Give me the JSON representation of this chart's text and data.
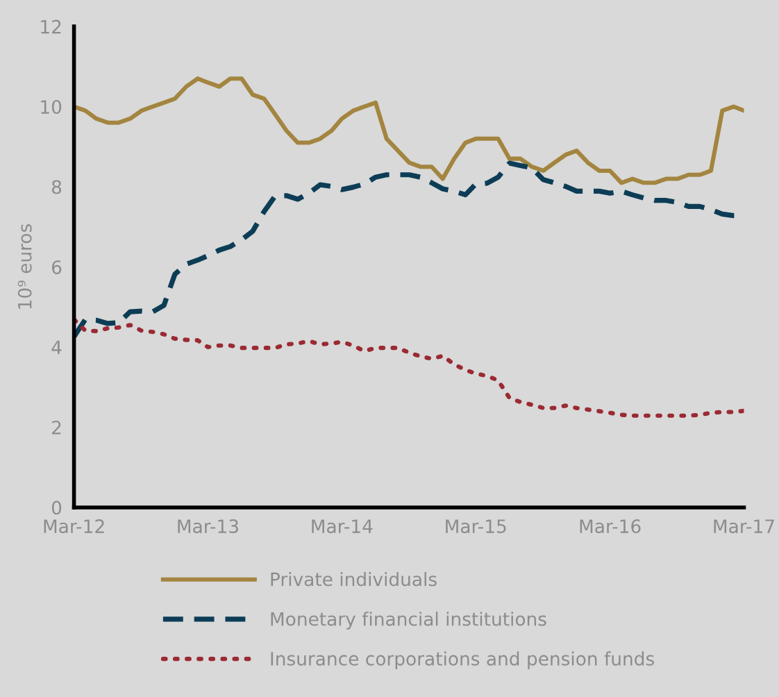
{
  "chart_data": {
    "type": "line",
    "ylabel": "10⁹ euros",
    "x": [
      "2012-03",
      "2012-04",
      "2012-05",
      "2012-06",
      "2012-07",
      "2012-08",
      "2012-09",
      "2012-10",
      "2012-11",
      "2012-12",
      "2013-01",
      "2013-02",
      "2013-03",
      "2013-04",
      "2013-05",
      "2013-06",
      "2013-07",
      "2013-08",
      "2013-09",
      "2013-10",
      "2013-11",
      "2013-12",
      "2014-01",
      "2014-02",
      "2014-03",
      "2014-04",
      "2014-05",
      "2014-06",
      "2014-07",
      "2014-08",
      "2014-09",
      "2014-10",
      "2014-11",
      "2014-12",
      "2015-01",
      "2015-02",
      "2015-03",
      "2015-04",
      "2015-05",
      "2015-06",
      "2015-07",
      "2015-08",
      "2015-09",
      "2015-10",
      "2015-11",
      "2015-12",
      "2016-01",
      "2016-02",
      "2016-03",
      "2016-04",
      "2016-05",
      "2016-06",
      "2016-07",
      "2016-08",
      "2016-09",
      "2016-10",
      "2016-11",
      "2016-12",
      "2017-01",
      "2017-02",
      "2017-03"
    ],
    "series": [
      {
        "name": "Private individuals",
        "color": "#a38540",
        "line_style": "solid",
        "values": [
          10.0,
          9.9,
          9.7,
          9.6,
          9.6,
          9.7,
          9.9,
          10.0,
          10.1,
          10.2,
          10.5,
          10.7,
          10.6,
          10.5,
          10.7,
          10.7,
          10.3,
          10.2,
          9.8,
          9.4,
          9.1,
          9.1,
          9.2,
          9.4,
          9.7,
          9.9,
          10.0,
          10.1,
          9.2,
          8.9,
          8.6,
          8.5,
          8.5,
          8.2,
          8.7,
          9.1,
          9.2,
          9.2,
          9.2,
          8.7,
          8.7,
          8.5,
          8.4,
          8.6,
          8.8,
          8.9,
          8.6,
          8.4,
          8.4,
          8.1,
          8.2,
          8.1,
          8.1,
          8.2,
          8.2,
          8.3,
          8.3,
          8.4,
          9.9,
          10.0,
          9.9
        ]
      },
      {
        "name": "Monetary financial institutions",
        "color": "#0d3d56",
        "line_style": "dashed",
        "values": [
          4.26,
          4.69,
          4.67,
          4.59,
          4.61,
          4.88,
          4.9,
          4.88,
          5.04,
          5.82,
          6.07,
          6.17,
          6.28,
          6.42,
          6.51,
          6.68,
          6.89,
          7.38,
          7.78,
          7.78,
          7.69,
          7.84,
          8.05,
          8.01,
          7.93,
          7.99,
          8.07,
          8.24,
          8.3,
          8.3,
          8.3,
          8.24,
          8.1,
          7.95,
          7.89,
          7.8,
          8.07,
          8.09,
          8.24,
          8.59,
          8.53,
          8.47,
          8.18,
          8.1,
          8.01,
          7.89,
          7.89,
          7.89,
          7.84,
          7.89,
          7.8,
          7.72,
          7.66,
          7.66,
          7.61,
          7.51,
          7.51,
          7.43,
          7.32,
          7.28,
          7.28
        ]
      },
      {
        "name": "Insurance corporations and pension funds",
        "color": "#9b2a33",
        "line_style": "dotted",
        "values": [
          4.69,
          4.41,
          4.4,
          4.47,
          4.49,
          4.55,
          4.41,
          4.38,
          4.32,
          4.21,
          4.18,
          4.17,
          4.0,
          4.04,
          4.04,
          3.98,
          3.98,
          3.98,
          3.98,
          4.07,
          4.09,
          4.15,
          4.07,
          4.09,
          4.13,
          4.04,
          3.9,
          3.98,
          3.98,
          3.98,
          3.86,
          3.77,
          3.71,
          3.78,
          3.57,
          3.43,
          3.34,
          3.28,
          3.17,
          2.73,
          2.63,
          2.56,
          2.48,
          2.48,
          2.54,
          2.48,
          2.44,
          2.4,
          2.36,
          2.31,
          2.29,
          2.29,
          2.29,
          2.29,
          2.29,
          2.29,
          2.31,
          2.36,
          2.38,
          2.38,
          2.41
        ]
      }
    ],
    "xlim": [
      "2012-03",
      "2017-03"
    ],
    "xticks": [
      {
        "value": "2012-03",
        "label": "Mar-12"
      },
      {
        "value": "2013-03",
        "label": "Mar-13"
      },
      {
        "value": "2014-03",
        "label": "Mar-14"
      },
      {
        "value": "2015-03",
        "label": "Mar-15"
      },
      {
        "value": "2016-03",
        "label": "Mar-16"
      },
      {
        "value": "2017-03",
        "label": "Mar-17"
      }
    ],
    "ylim": [
      0,
      12
    ],
    "yticks": [
      0,
      2,
      4,
      6,
      8,
      10,
      12
    ],
    "grid": false,
    "legend": "bottom"
  }
}
